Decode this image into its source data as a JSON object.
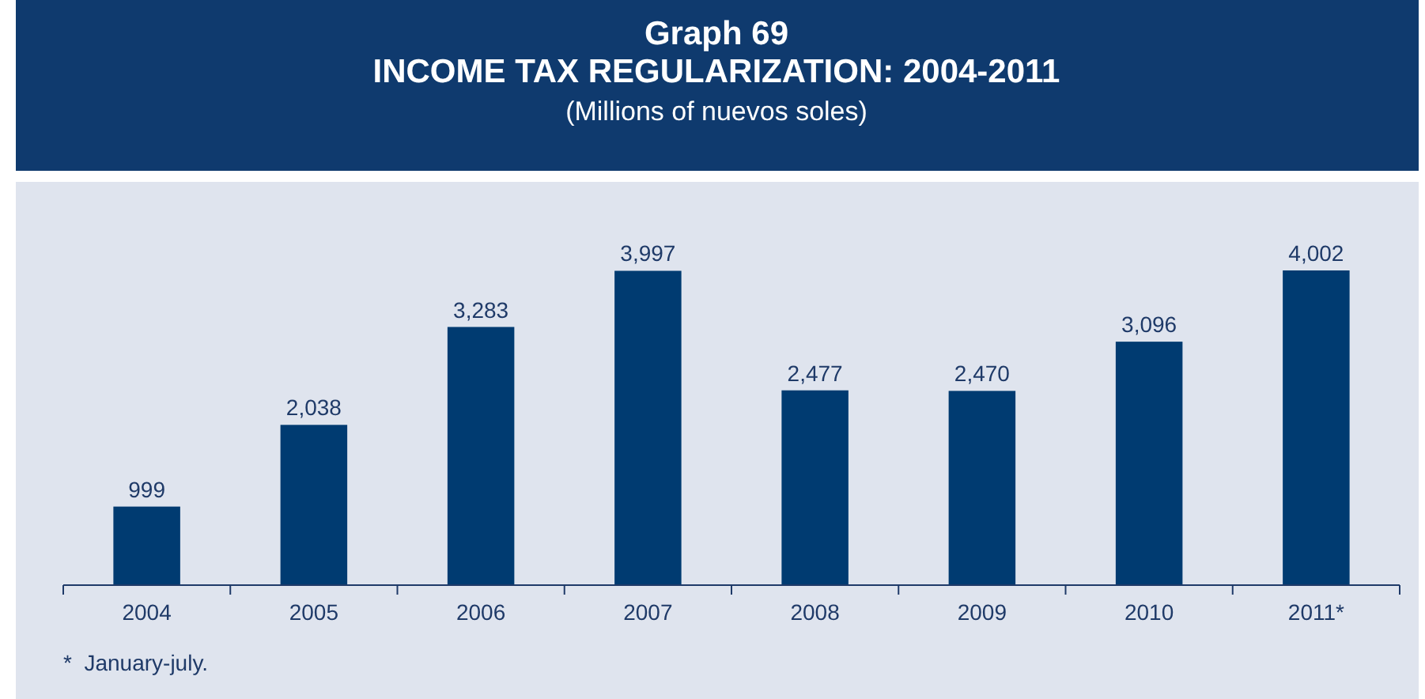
{
  "chart_data": {
    "type": "bar",
    "title": "Graph 69\nINCOME TAX REGULARIZATION: 2004-2011",
    "subtitle": "(Millions of nuevos soles)",
    "categories": [
      "2004",
      "2005",
      "2006",
      "2007",
      "2008",
      "2009",
      "2010",
      "2011*"
    ],
    "values": [
      999,
      2038,
      3283,
      3997,
      2477,
      2470,
      3096,
      4002
    ],
    "value_labels": [
      "999",
      "2,038",
      "3,283",
      "3,997",
      "2,477",
      "2,470",
      "3,096",
      "4,002"
    ],
    "color": "#003b71",
    "annotations": [
      "*  January-july."
    ]
  }
}
